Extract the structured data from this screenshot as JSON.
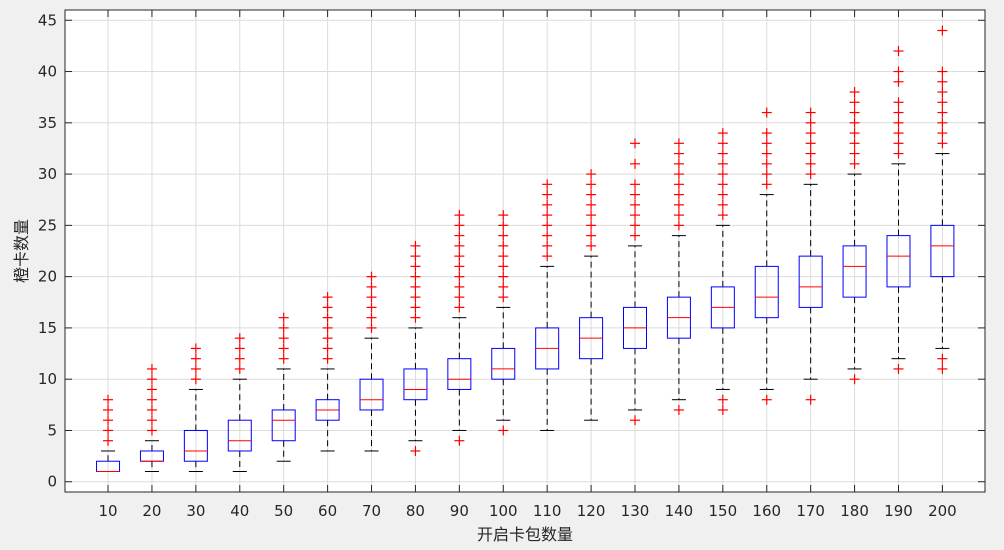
{
  "chart_data": {
    "type": "boxplot",
    "xlabel": "开启卡包数量",
    "ylabel": "橙卡数量",
    "ylim": [
      -1,
      46
    ],
    "yticks": [
      0,
      5,
      10,
      15,
      20,
      25,
      30,
      35,
      40,
      45
    ],
    "grid": true,
    "colors": {
      "box": "#0000ff",
      "median": "#ff0000",
      "outlier": "#ff0000",
      "whisker": "#000000",
      "grid": "#dcdcdc",
      "axes": "#262626",
      "plot_bg": "#ffffff",
      "figure_bg": "#f0f0f0"
    },
    "categories": [
      "10",
      "20",
      "30",
      "40",
      "50",
      "60",
      "70",
      "80",
      "90",
      "100",
      "110",
      "120",
      "130",
      "140",
      "150",
      "160",
      "170",
      "180",
      "190",
      "200"
    ],
    "boxes": [
      {
        "q1": 1,
        "median": 1,
        "q3": 2,
        "whisker_low": 1,
        "whisker_high": 3,
        "outliers": [
          4,
          5,
          6,
          7,
          8
        ]
      },
      {
        "q1": 2,
        "median": 2,
        "q3": 3,
        "whisker_low": 1,
        "whisker_high": 4,
        "outliers": [
          5,
          6,
          7,
          8,
          9,
          10,
          11
        ]
      },
      {
        "q1": 2,
        "median": 3,
        "q3": 5,
        "whisker_low": 1,
        "whisker_high": 9,
        "outliers": [
          10,
          11,
          12,
          13
        ]
      },
      {
        "q1": 3,
        "median": 4,
        "q3": 6,
        "whisker_low": 1,
        "whisker_high": 10,
        "outliers": [
          11,
          12,
          13,
          14
        ]
      },
      {
        "q1": 4,
        "median": 6,
        "q3": 7,
        "whisker_low": 2,
        "whisker_high": 11,
        "outliers": [
          12,
          13,
          14,
          15,
          16
        ]
      },
      {
        "q1": 6,
        "median": 7,
        "q3": 8,
        "whisker_low": 3,
        "whisker_high": 11,
        "outliers": [
          12,
          13,
          14,
          15,
          16,
          17,
          18
        ]
      },
      {
        "q1": 7,
        "median": 8,
        "q3": 10,
        "whisker_low": 3,
        "whisker_high": 14,
        "outliers": [
          15,
          16,
          17,
          18,
          19,
          20
        ]
      },
      {
        "q1": 8,
        "median": 9,
        "q3": 11,
        "whisker_low": 4,
        "whisker_high": 15,
        "outliers": [
          3,
          16,
          17,
          18,
          19,
          20,
          21,
          22,
          23
        ]
      },
      {
        "q1": 9,
        "median": 10,
        "q3": 12,
        "whisker_low": 5,
        "whisker_high": 16,
        "outliers": [
          4,
          17,
          18,
          19,
          20,
          21,
          22,
          23,
          24,
          25,
          26
        ]
      },
      {
        "q1": 10,
        "median": 11,
        "q3": 13,
        "whisker_low": 6,
        "whisker_high": 17,
        "outliers": [
          5,
          18,
          19,
          20,
          21,
          22,
          23,
          24,
          25,
          26
        ]
      },
      {
        "q1": 11,
        "median": 13,
        "q3": 15,
        "whisker_low": 5,
        "whisker_high": 21,
        "outliers": [
          22,
          23,
          24,
          25,
          26,
          27,
          28,
          29
        ]
      },
      {
        "q1": 12,
        "median": 14,
        "q3": 16,
        "whisker_low": 6,
        "whisker_high": 22,
        "outliers": [
          23,
          24,
          25,
          26,
          27,
          28,
          29,
          30
        ]
      },
      {
        "q1": 13,
        "median": 15,
        "q3": 17,
        "whisker_low": 7,
        "whisker_high": 23,
        "outliers": [
          6,
          24,
          25,
          26,
          27,
          28,
          29,
          31,
          33
        ]
      },
      {
        "q1": 14,
        "median": 16,
        "q3": 18,
        "whisker_low": 8,
        "whisker_high": 24,
        "outliers": [
          7,
          25,
          26,
          27,
          28,
          29,
          30,
          31,
          32,
          33
        ]
      },
      {
        "q1": 15,
        "median": 17,
        "q3": 19,
        "whisker_low": 9,
        "whisker_high": 25,
        "outliers": [
          7,
          8,
          26,
          27,
          28,
          29,
          30,
          31,
          32,
          33,
          34
        ]
      },
      {
        "q1": 16,
        "median": 18,
        "q3": 21,
        "whisker_low": 9,
        "whisker_high": 28,
        "outliers": [
          8,
          29,
          30,
          31,
          32,
          33,
          34,
          36
        ]
      },
      {
        "q1": 17,
        "median": 19,
        "q3": 22,
        "whisker_low": 10,
        "whisker_high": 29,
        "outliers": [
          8,
          30,
          31,
          32,
          33,
          34,
          35,
          36
        ]
      },
      {
        "q1": 18,
        "median": 21,
        "q3": 23,
        "whisker_low": 11,
        "whisker_high": 30,
        "outliers": [
          10,
          31,
          32,
          33,
          34,
          35,
          36,
          37,
          38
        ]
      },
      {
        "q1": 19,
        "median": 22,
        "q3": 24,
        "whisker_low": 12,
        "whisker_high": 31,
        "outliers": [
          11,
          32,
          33,
          34,
          35,
          36,
          37,
          39,
          40,
          42
        ]
      },
      {
        "q1": 20,
        "median": 23,
        "q3": 25,
        "whisker_low": 13,
        "whisker_high": 32,
        "outliers": [
          11,
          12,
          33,
          34,
          35,
          36,
          37,
          38,
          39,
          40,
          44
        ]
      }
    ]
  }
}
